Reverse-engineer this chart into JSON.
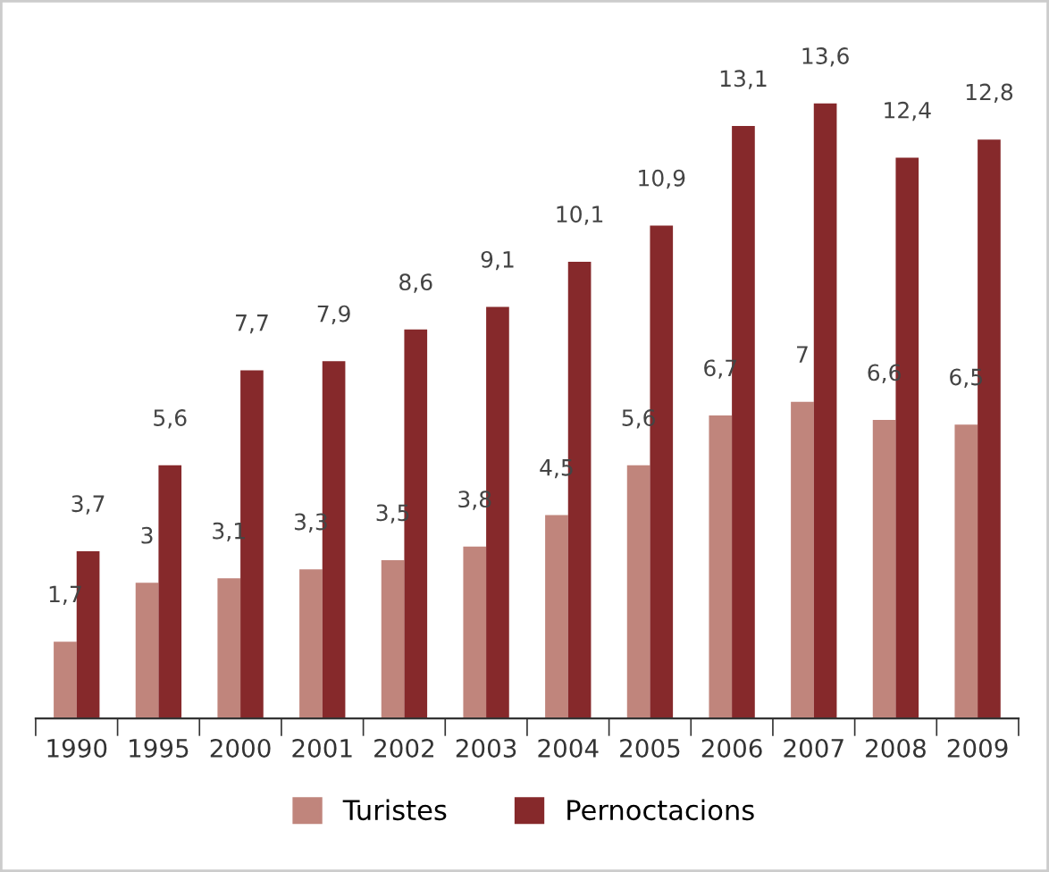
{
  "chart_data": {
    "type": "bar",
    "categories": [
      "1990",
      "1995",
      "2000",
      "2001",
      "2002",
      "2003",
      "2004",
      "2005",
      "2006",
      "2007",
      "2008",
      "2009"
    ],
    "series": [
      {
        "name": "Turistes",
        "color": "#c0857c",
        "values": [
          1.7,
          3,
          3.1,
          3.3,
          3.5,
          3.8,
          4.5,
          5.6,
          6.7,
          7,
          6.6,
          6.5
        ],
        "value_labels": [
          "1,7",
          "3",
          "3,1",
          "3,3",
          "3,5",
          "3,8",
          "4,5",
          "5,6",
          "6,7",
          "7",
          "6,6",
          "6,5"
        ]
      },
      {
        "name": "Pernoctacions",
        "color": "#86292b",
        "values": [
          3.7,
          5.6,
          7.7,
          7.9,
          8.6,
          9.1,
          10.1,
          10.9,
          13.1,
          13.6,
          12.4,
          12.8
        ],
        "value_labels": [
          "3,7",
          "5,6",
          "7,7",
          "7,9",
          "8,6",
          "9,1",
          "10,1",
          "10,9",
          "13,1",
          "13,6",
          "12,4",
          "12,8"
        ]
      }
    ],
    "legend": "bottom",
    "grid": false,
    "tick_labels": "x"
  }
}
